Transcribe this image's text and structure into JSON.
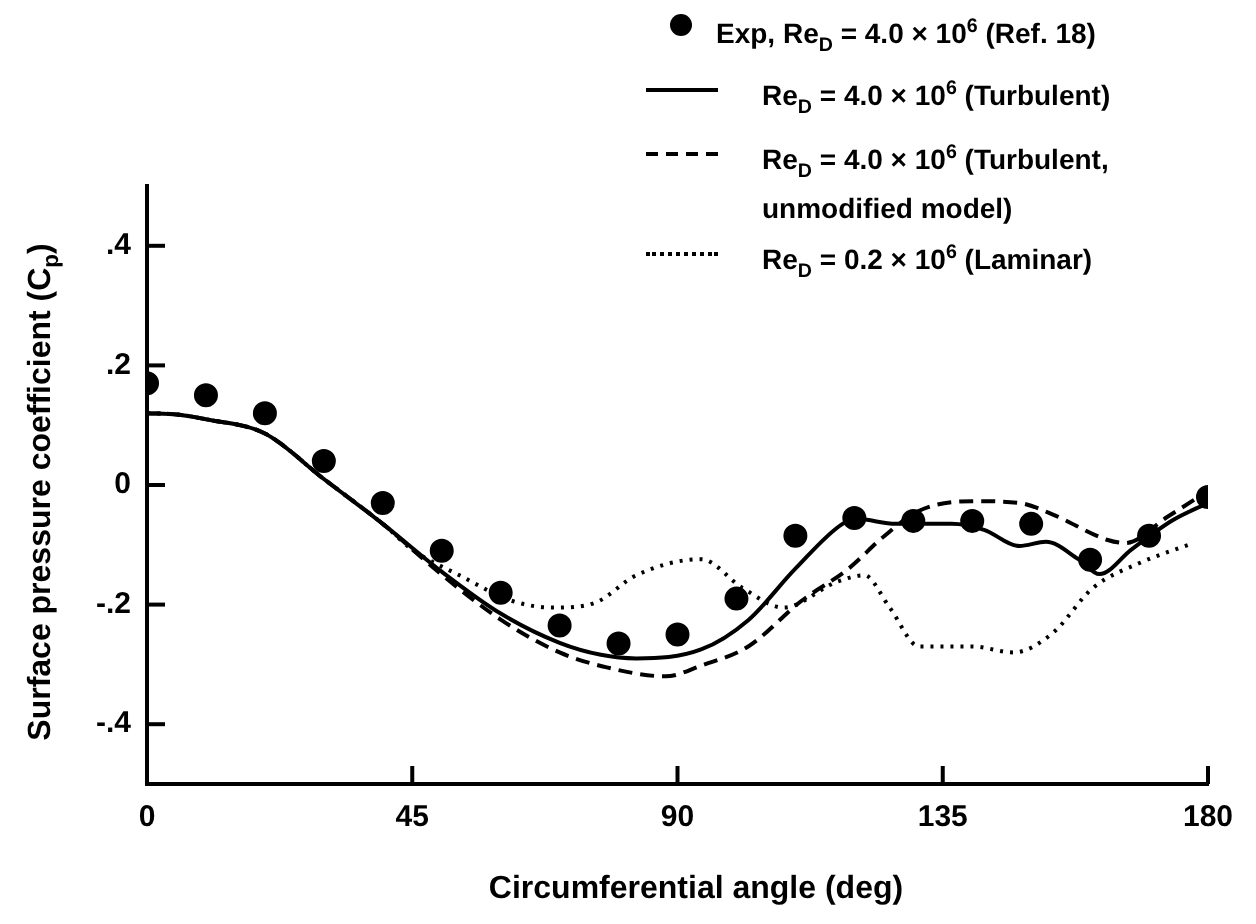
{
  "chart_data": {
    "type": "line",
    "xlabel": "Circumferential angle (deg)",
    "ylabel": "Surface pressure coefficient (C$_{p}$)",
    "xlim": [
      0,
      180
    ],
    "xticks": [
      0,
      45,
      90,
      135,
      180
    ],
    "ylim": [
      -0.5,
      0.5
    ],
    "yticks": [
      {
        "value": -0.4,
        "label": "-.4"
      },
      {
        "value": -0.2,
        "label": "-.2"
      },
      0,
      {
        "value": 0.2,
        "label": ".2"
      },
      {
        "value": 0.4,
        "label": ".4"
      }
    ],
    "legend": "top right",
    "series": [
      {
        "name": "Exp, Re$_{D}$ = 4.0 × 10$^{6}$ (Ref. 18)",
        "type": "scatter",
        "marker": "circle",
        "color": "#000000",
        "x": [
          0,
          10,
          20,
          30,
          40,
          50,
          60,
          70,
          80,
          90,
          100,
          110,
          120,
          130,
          140,
          150,
          160,
          170,
          180
        ],
        "values": [
          0.17,
          0.15,
          0.12,
          0.04,
          -0.03,
          -0.11,
          -0.18,
          -0.235,
          -0.265,
          -0.25,
          -0.19,
          -0.085,
          -0.055,
          -0.06,
          -0.06,
          -0.065,
          -0.125,
          -0.085,
          -0.02
        ]
      },
      {
        "name": "Re$_{D}$ = 4.0 × 10$^{6}$ (Turbulent)",
        "type": "line",
        "line_style": "solid",
        "color": "#000000",
        "x": [
          0,
          5,
          10,
          20,
          30,
          40,
          50,
          60,
          70,
          77,
          83,
          94,
          102,
          110,
          118,
          120.5,
          127,
          136.5,
          142,
          148,
          152.5,
          158,
          161.6,
          167,
          174,
          180
        ],
        "values": [
          0.12,
          0.118,
          0.11,
          0.086,
          0.01,
          -0.065,
          -0.145,
          -0.215,
          -0.264,
          -0.284,
          -0.29,
          -0.275,
          -0.226,
          -0.14,
          -0.065,
          -0.057,
          -0.065,
          -0.065,
          -0.075,
          -0.102,
          -0.095,
          -0.124,
          -0.149,
          -0.108,
          -0.059,
          -0.03
        ]
      },
      {
        "name": "Re$_{D}$ = 4.0 × 10$^{6}$ (Turbulent, unmodified model)",
        "type": "line",
        "line_style": "dashed",
        "color": "#000000",
        "x": [
          0,
          5,
          10,
          20,
          30,
          40,
          50,
          60,
          70,
          78,
          88,
          94,
          102,
          111,
          119,
          125,
          131,
          140,
          148,
          153.6,
          163,
          166,
          173,
          180
        ],
        "values": [
          0.12,
          0.118,
          0.11,
          0.086,
          0.01,
          -0.065,
          -0.15,
          -0.225,
          -0.28,
          -0.305,
          -0.32,
          -0.302,
          -0.27,
          -0.194,
          -0.14,
          -0.086,
          -0.043,
          -0.027,
          -0.03,
          -0.049,
          -0.092,
          -0.097,
          -0.054,
          -0.01
        ]
      },
      {
        "name": "Re$_{D}$ = 0.2 × 10$^{6}$ (Laminar)",
        "type": "line",
        "line_style": "dotted",
        "color": "#000000",
        "x": [
          0,
          5,
          10,
          20,
          30,
          40,
          45,
          53,
          62,
          69,
          76,
          83,
          94,
          101,
          108,
          117,
          121.7,
          126,
          131,
          140,
          147,
          153.6,
          160.5,
          168.5,
          177.6
        ],
        "values": [
          0.12,
          0.118,
          0.11,
          0.086,
          0.01,
          -0.065,
          -0.108,
          -0.151,
          -0.194,
          -0.205,
          -0.197,
          -0.151,
          -0.124,
          -0.172,
          -0.205,
          -0.162,
          -0.151,
          -0.205,
          -0.27,
          -0.27,
          -0.28,
          -0.248,
          -0.172,
          -0.13,
          -0.097
        ]
      }
    ]
  }
}
